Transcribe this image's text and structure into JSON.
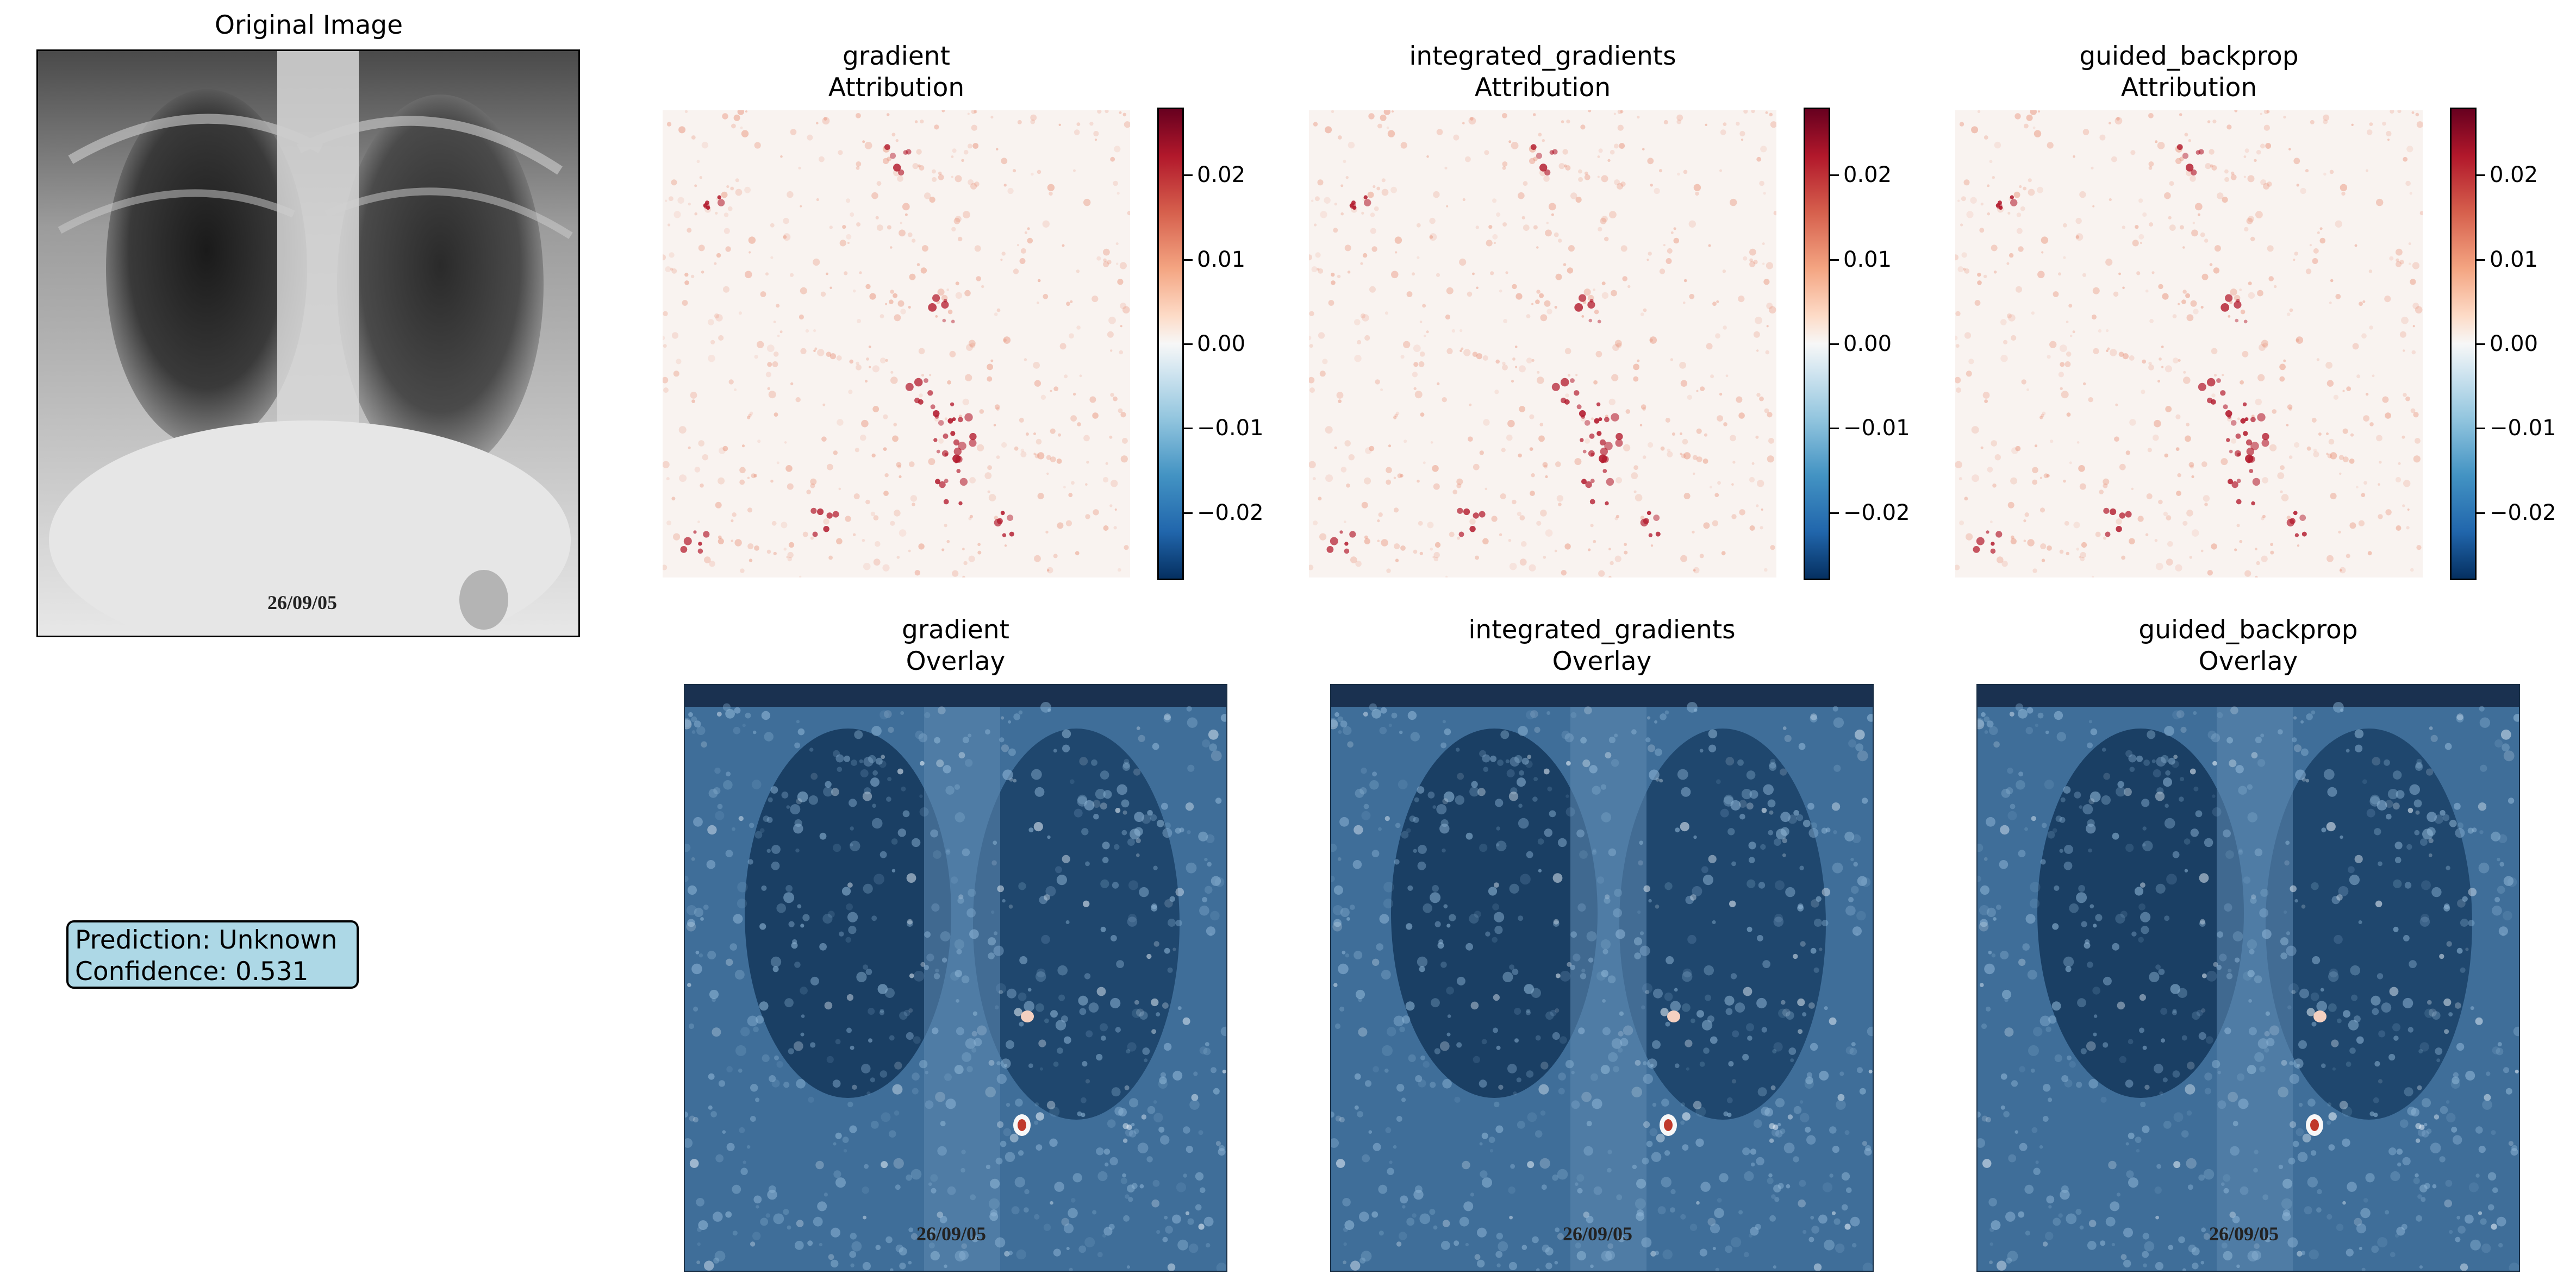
{
  "original": {
    "title": "Original Image",
    "date_stamp": "26/09/05"
  },
  "prediction": {
    "line1": "Prediction: Unknown",
    "line2": "Confidence: 0.531"
  },
  "colorbar": {
    "ticks": [
      "0.02",
      "0.01",
      "0.00",
      "−0.01",
      "−0.02"
    ],
    "colormap": "RdBu_r"
  },
  "attribution_panels": [
    {
      "title_method": "gradient",
      "title_kind": "Attribution"
    },
    {
      "title_method": "integrated_gradients",
      "title_kind": "Attribution"
    },
    {
      "title_method": "guided_backprop",
      "title_kind": "Attribution"
    }
  ],
  "overlay_panels": [
    {
      "title_method": "gradient",
      "title_kind": "Overlay",
      "date_stamp": "26/09/05"
    },
    {
      "title_method": "integrated_gradients",
      "title_kind": "Overlay",
      "date_stamp": "26/09/05"
    },
    {
      "title_method": "guided_backprop",
      "title_kind": "Overlay",
      "date_stamp": "26/09/05"
    }
  ],
  "chart_data": {
    "type": "heatmap",
    "methods": [
      "gradient",
      "integrated_gradients",
      "guided_backprop"
    ],
    "colorbar_range": [
      -0.028,
      0.028
    ],
    "colorbar_ticks": [
      0.02,
      0.01,
      0.0,
      -0.01,
      -0.02
    ]
  }
}
